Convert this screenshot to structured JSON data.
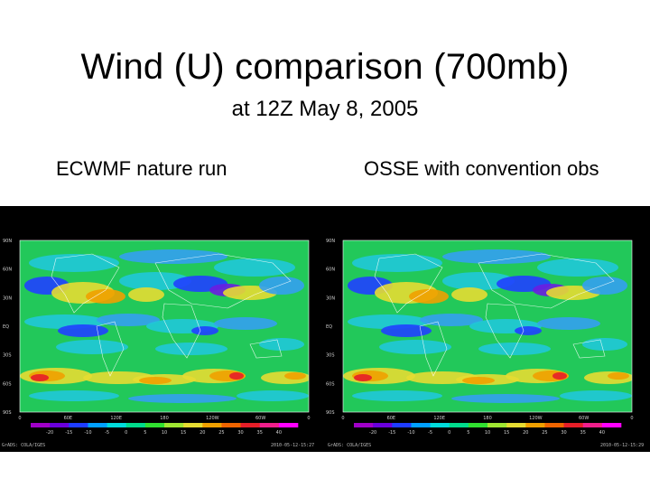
{
  "slide": {
    "title": "Wind (U) comparison (700mb)",
    "subtitle": "at 12Z May 8, 2005",
    "left_label": "ECWMF nature run",
    "right_label": "OSSE with convention obs"
  },
  "map": {
    "lat_labels": [
      "90N",
      "60N",
      "30N",
      "EQ",
      "30S",
      "60S",
      "90S"
    ],
    "lon_labels": [
      "0",
      "60E",
      "120E",
      "180",
      "120W",
      "60W",
      "0"
    ],
    "colorbar_ticks": [
      "-20",
      "-15",
      "-10",
      "-5",
      "0",
      "5",
      "10",
      "15",
      "20",
      "25",
      "30",
      "35",
      "40"
    ],
    "colorbar_colors": [
      "#a000c8",
      "#6a00dc",
      "#1e3cff",
      "#00a0ff",
      "#00dcdc",
      "#00dc8c",
      "#30e030",
      "#a0e632",
      "#e6dc32",
      "#f0a000",
      "#f06400",
      "#e61e28",
      "#f01e8c",
      "#ff00ff"
    ],
    "field_colors": {
      "base": "#22c85a",
      "green": "#28d040",
      "cyan": "#20c8d8",
      "lightblue": "#34a0f0",
      "blue": "#2040ff",
      "purple": "#6a1ee0",
      "yellow": "#e6dc32",
      "orange": "#f0a000",
      "red": "#e61e28",
      "magenta": "#f01e8c",
      "coast": "#ffffff"
    }
  },
  "left_panel": {
    "footer_left": "GrADS: COLA/IGES",
    "footer_right": "2010-05-12-15:27"
  },
  "right_panel": {
    "footer_left": "GrADS: COLA/IGES",
    "footer_right": "2010-05-12-15:29"
  }
}
